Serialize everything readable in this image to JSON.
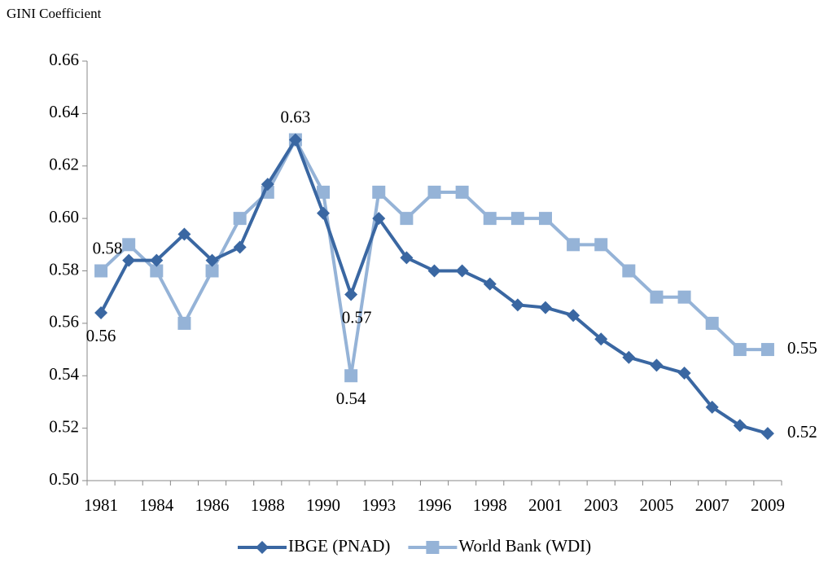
{
  "chart_data": {
    "type": "line",
    "ylabel": "GINI Coefficient",
    "categories": [
      "1981",
      null,
      "1984",
      null,
      "1986",
      null,
      "1988",
      null,
      "1990",
      null,
      "1993",
      null,
      "1996",
      null,
      "1998",
      null,
      "2001",
      null,
      "2003",
      null,
      "2005",
      null,
      "2007",
      null,
      "2009"
    ],
    "ylim": [
      0.5,
      0.66
    ],
    "yticks": [
      {
        "value": 0.5,
        "label": "0.50"
      },
      0.52,
      0.54,
      0.56,
      0.58,
      {
        "value": 0.6,
        "label": "0.60"
      },
      0.62,
      0.64,
      0.66
    ],
    "legend": "bottom",
    "series": [
      {
        "name": "IBGE (PNAD)",
        "color": "#3a67a2",
        "marker": "diamond",
        "values": [
          0.564,
          0.584,
          0.584,
          0.594,
          0.584,
          0.589,
          0.613,
          0.63,
          0.602,
          0.571,
          0.6,
          0.585,
          0.58,
          0.58,
          0.575,
          0.567,
          0.566,
          0.563,
          0.554,
          0.547,
          0.544,
          0.541,
          0.528,
          0.521,
          0.518
        ],
        "value_labels": [
          "0.56",
          null,
          null,
          null,
          null,
          null,
          null,
          null,
          null,
          "0.57",
          null,
          null,
          null,
          null,
          null,
          null,
          null,
          null,
          null,
          null,
          null,
          null,
          null,
          null,
          "0.52"
        ]
      },
      {
        "name": "World Bank (WDI)",
        "color": "#95b3d7",
        "marker": "square",
        "values": [
          0.58,
          0.59,
          0.58,
          0.56,
          0.58,
          0.6,
          0.61,
          0.63,
          0.61,
          0.54,
          0.61,
          0.6,
          0.61,
          0.61,
          0.6,
          0.6,
          0.6,
          0.59,
          0.59,
          0.58,
          0.57,
          0.57,
          0.56,
          0.55,
          0.55
        ],
        "value_labels": [
          "0.58",
          null,
          null,
          null,
          null,
          null,
          null,
          "0.63",
          null,
          "0.54",
          null,
          null,
          null,
          null,
          null,
          null,
          null,
          null,
          null,
          null,
          null,
          null,
          null,
          null,
          "0.55"
        ]
      }
    ]
  }
}
